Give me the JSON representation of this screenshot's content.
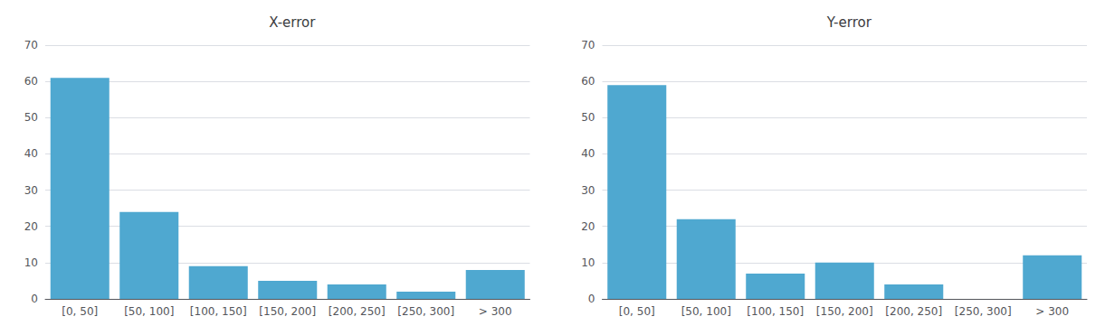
{
  "chart_data": [
    {
      "type": "bar",
      "title": "X-error",
      "categories": [
        "[0, 50]",
        "[50, 100]",
        "[100, 150]",
        "[150, 200]",
        "[200, 250]",
        "[250, 300]",
        "> 300"
      ],
      "values": [
        61,
        24,
        9,
        5,
        4,
        2,
        8
      ],
      "color": "#4fa8d0",
      "ylim": [
        0,
        70
      ],
      "yticks": [
        0,
        10,
        20,
        30,
        40,
        50,
        60,
        70
      ],
      "grid": true
    },
    {
      "type": "bar",
      "title": "Y-error",
      "categories": [
        "[0, 50]",
        "[50, 100]",
        "[100, 150]",
        "[150, 200]",
        "[200, 250]",
        "[250, 300]",
        "> 300"
      ],
      "values": [
        59,
        22,
        7,
        10,
        4,
        0,
        12
      ],
      "color": "#4fa8d0",
      "ylim": [
        0,
        70
      ],
      "yticks": [
        0,
        10,
        20,
        30,
        40,
        50,
        60,
        70
      ],
      "grid": true
    }
  ]
}
